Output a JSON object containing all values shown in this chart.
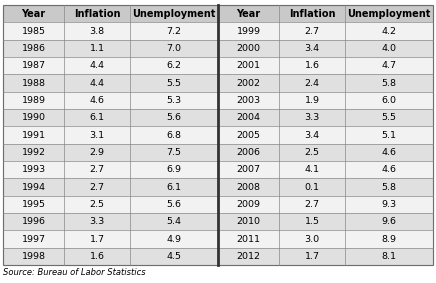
{
  "left_table": {
    "years": [
      1985,
      1986,
      1987,
      1988,
      1989,
      1990,
      1991,
      1992,
      1993,
      1994,
      1995,
      1996,
      1997,
      1998
    ],
    "inflation": [
      3.8,
      1.1,
      4.4,
      4.4,
      4.6,
      6.1,
      3.1,
      2.9,
      2.7,
      2.7,
      2.5,
      3.3,
      1.7,
      1.6
    ],
    "unemployment": [
      7.2,
      7.0,
      6.2,
      5.5,
      5.3,
      5.6,
      6.8,
      7.5,
      6.9,
      6.1,
      5.6,
      5.4,
      4.9,
      4.5
    ]
  },
  "right_table": {
    "years": [
      1999,
      2000,
      2001,
      2002,
      2003,
      2004,
      2005,
      2006,
      2007,
      2008,
      2009,
      2010,
      2011,
      2012
    ],
    "inflation": [
      2.7,
      3.4,
      1.6,
      2.4,
      1.9,
      3.3,
      3.4,
      2.5,
      4.1,
      0.1,
      2.7,
      1.5,
      3.0,
      1.7
    ],
    "unemployment": [
      4.2,
      4.0,
      4.7,
      5.8,
      6.0,
      5.5,
      5.1,
      4.6,
      4.6,
      5.8,
      9.3,
      9.6,
      8.9,
      8.1
    ]
  },
  "headers": [
    "Year",
    "Inflation",
    "Unemployment"
  ],
  "source": "Source: Bureau of Labor Statistics",
  "header_bg": "#c9c9c9",
  "row_bg_light": "#f2f2f2",
  "row_bg_dark": "#e0e0e0",
  "border_color": "#888888",
  "thick_border_color": "#333333",
  "text_color": "#000000",
  "header_fontsize": 7.0,
  "cell_fontsize": 6.8,
  "source_fontsize": 6.0,
  "fig_width": 4.36,
  "fig_height": 2.83,
  "dpi": 100
}
